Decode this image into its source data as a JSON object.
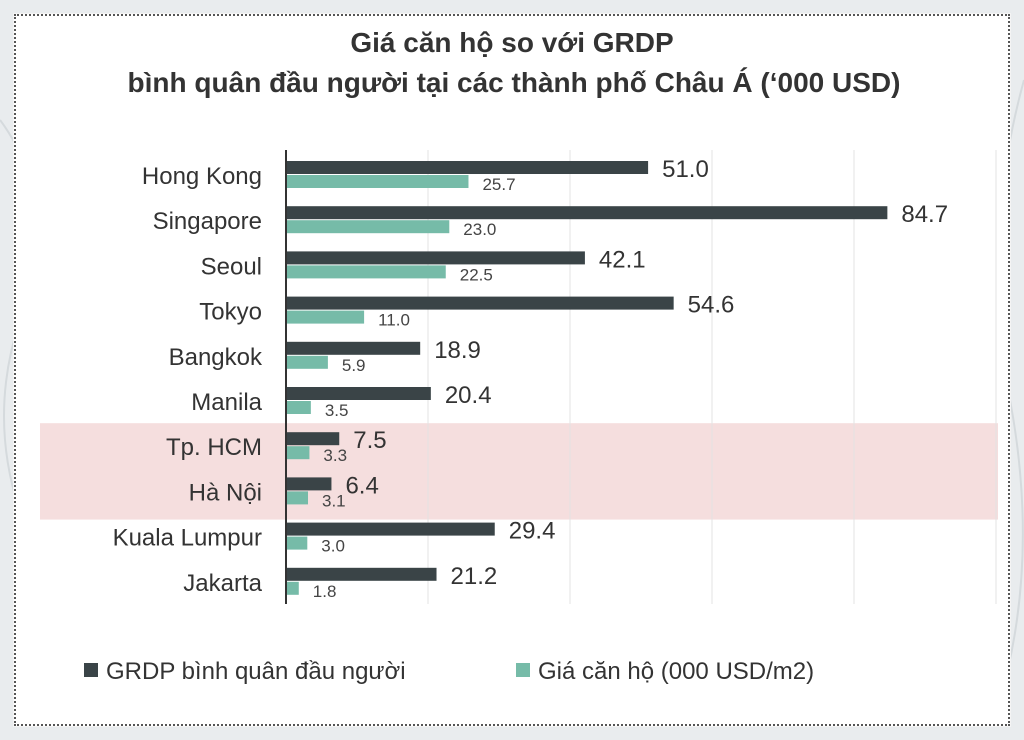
{
  "chart_data": {
    "type": "bar",
    "orientation": "horizontal",
    "title_line1": "Giá căn hộ so với GRDP",
    "title_line2": "bình quân đầu người tại các thành phố Châu Á (‘000 USD)",
    "categories": [
      "Hong Kong",
      "Singapore",
      "Seoul",
      "Tokyo",
      "Bangkok",
      "Manila",
      "Tp. HCM",
      "Hà Nội",
      "Kuala Lumpur",
      "Jakarta"
    ],
    "series": [
      {
        "name": "GRDP bình quân đầu người",
        "color": "#3a4447",
        "values": [
          51.0,
          84.7,
          42.1,
          54.6,
          18.9,
          20.4,
          7.5,
          6.4,
          29.4,
          21.2
        ],
        "labels": [
          "51.0",
          "84.7",
          "42.1",
          "54.6",
          "18.9",
          "20.4",
          "7.5",
          "6.4",
          "29.4",
          "21.2"
        ]
      },
      {
        "name": "Giá căn hộ (000 USD/m2)",
        "color": "#76bba8",
        "values": [
          25.7,
          23.0,
          22.5,
          11.0,
          5.9,
          3.5,
          3.3,
          3.1,
          3.0,
          1.8
        ],
        "labels": [
          "25.7",
          "23.0",
          "22.5",
          "11.0",
          "5.9",
          "3.5",
          "3.3",
          "3.1",
          "3.0",
          "1.8"
        ]
      }
    ],
    "xlim": [
      0,
      100
    ],
    "grid": true,
    "legend": "bottom",
    "highlighted_categories": [
      "Tp. HCM",
      "Hà Nội"
    ],
    "highlight_color": "#f5dede"
  }
}
